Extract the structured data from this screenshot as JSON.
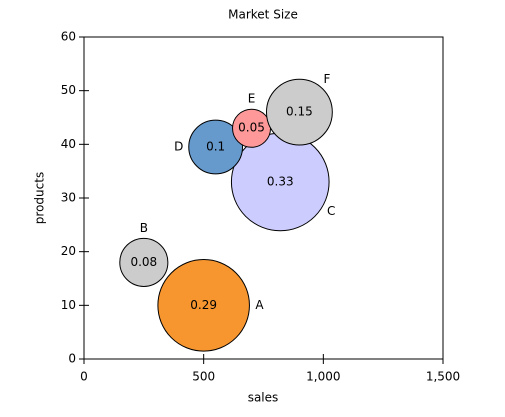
{
  "chart_data": {
    "type": "bubble",
    "title": "Market Size",
    "xlabel": "sales",
    "ylabel": "products",
    "labels": [
      "A",
      "B",
      "C",
      "D",
      "E",
      "F"
    ],
    "x": [
      500,
      250,
      820,
      550,
      700,
      900
    ],
    "values": [
      10,
      18,
      33,
      39.5,
      43,
      46
    ],
    "sizes": [
      0.29,
      0.08,
      0.33,
      0.1,
      0.05,
      0.15
    ],
    "colors": [
      "#f7962f",
      "#cccccc",
      "#ccccff",
      "#6699cc",
      "#ff9999",
      "#cccccc"
    ],
    "xlim": [
      0,
      1500
    ],
    "xticks": [
      0,
      500,
      {
        "value": 1000,
        "label": "1,000"
      },
      {
        "value": 1500,
        "label": "1,500"
      }
    ],
    "ylim": [
      0,
      60
    ],
    "yticks": [
      0,
      10,
      20,
      30,
      40,
      50,
      60
    ]
  }
}
